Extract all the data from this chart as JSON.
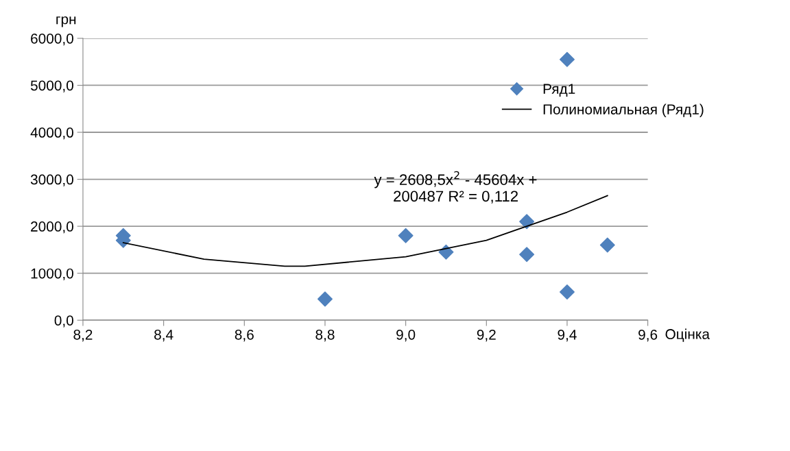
{
  "chart_data": {
    "type": "scatter",
    "xlabel": "Оцінка",
    "ylabel": "грн",
    "xlim": [
      8.2,
      9.6
    ],
    "xticks": [
      {
        "value": 8.2,
        "label": "8,2"
      },
      {
        "value": 8.4,
        "label": "8,4"
      },
      {
        "value": 8.6,
        "label": "8,6"
      },
      {
        "value": 8.8,
        "label": "8,8"
      },
      {
        "value": 9.0,
        "label": "9,0"
      },
      {
        "value": 9.2,
        "label": "9,2"
      },
      {
        "value": 9.4,
        "label": "9,4"
      },
      {
        "value": 9.6,
        "label": "9,6"
      }
    ],
    "ylim": [
      0,
      6000
    ],
    "yticks": [
      {
        "value": 0,
        "label": "0,0"
      },
      {
        "value": 1000,
        "label": "1000,0"
      },
      {
        "value": 2000,
        "label": "2000,0"
      },
      {
        "value": 3000,
        "label": "3000,0"
      },
      {
        "value": 4000,
        "label": "4000,0"
      },
      {
        "value": 5000,
        "label": "5000,0"
      },
      {
        "value": 6000,
        "label": "6000,0"
      }
    ],
    "grid": "y",
    "legend": "right",
    "series": [
      {
        "name": "Ряд1",
        "color": "#4f81bd",
        "marker": "diamond",
        "x": [
          8.3,
          8.3,
          8.8,
          9.0,
          9.1,
          9.3,
          9.3,
          9.4,
          9.4,
          9.5
        ],
        "values": [
          1800,
          1700,
          450,
          1800,
          1450,
          2100,
          1400,
          5550,
          600,
          1600
        ]
      },
      {
        "name": "Полиномиальная (Ряд1)",
        "type": "line",
        "color": "#000000",
        "marker": "none",
        "line_style": "solid",
        "x": [
          8.3,
          8.5,
          8.7,
          8.75,
          9.0,
          9.2,
          9.4,
          9.5
        ],
        "values": [
          1650,
          1300,
          1150,
          1150,
          1350,
          1700,
          2300,
          2650
        ]
      }
    ],
    "annotations": [
      "y = 2608,5x$^{2}$ - 45604x +\n200487 R² = 0,112"
    ]
  }
}
